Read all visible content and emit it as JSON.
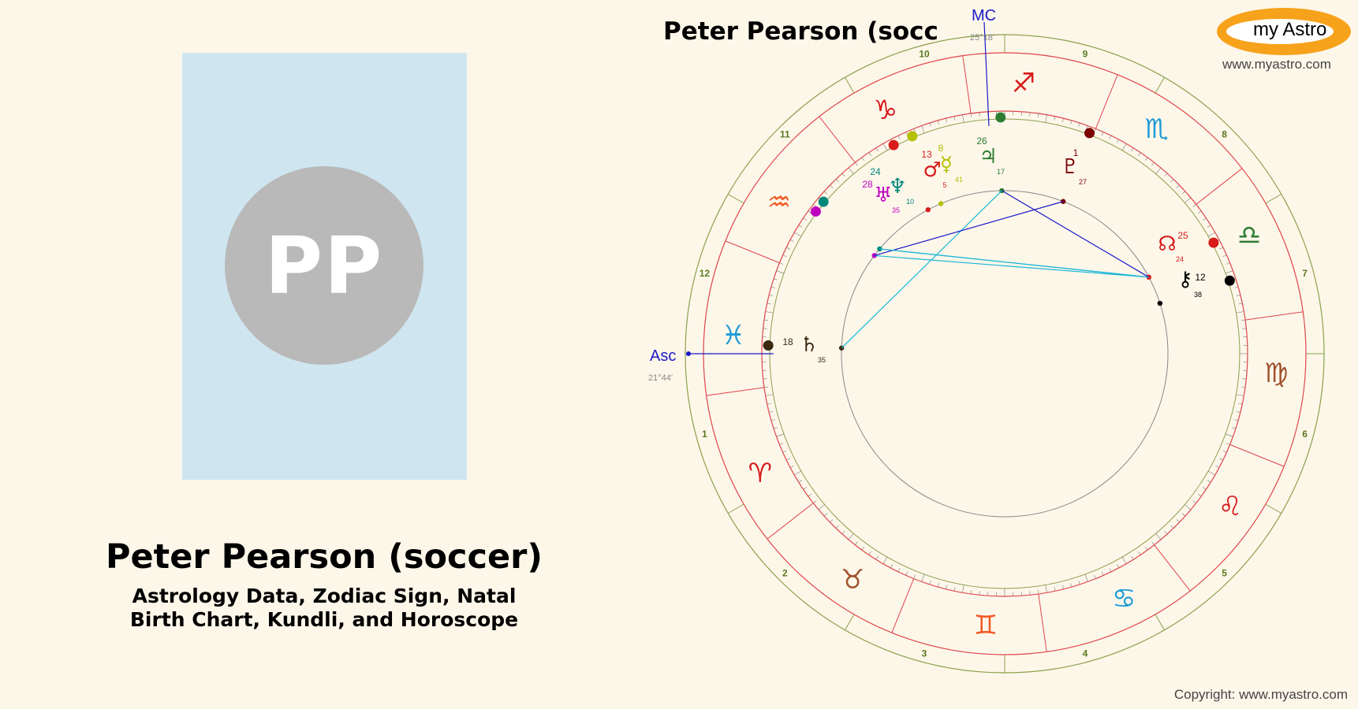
{
  "profile": {
    "initials": "PP",
    "name": "Peter Pearson (soccer)",
    "subtitle_line1": "Astrology Data, Zodiac Sign, Natal",
    "subtitle_line2": "Birth Chart, Kundli, and Horoscope"
  },
  "chart": {
    "title": "Peter Pearson (socc",
    "mc_label": "MC",
    "mc_degree": "25°18'",
    "asc_label": "Asc",
    "asc_degree": "21°44'"
  },
  "brand": {
    "logo_text": "my Astro",
    "site": "www.myastro.com",
    "copyright": "Copyright: www.myastro.com"
  },
  "houses": [
    "1",
    "2",
    "3",
    "4",
    "5",
    "6",
    "7",
    "8",
    "9",
    "10",
    "11",
    "12"
  ],
  "signs": [
    {
      "glyph": "♓",
      "color": "#1e9bd7"
    },
    {
      "glyph": "♒",
      "color": "#f15a24"
    },
    {
      "glyph": "♑",
      "color": "#d81b1b"
    },
    {
      "glyph": "♐",
      "color": "#d81b1b"
    },
    {
      "glyph": "♏",
      "color": "#1e9bd7"
    },
    {
      "glyph": "♎",
      "color": "#2e7d32"
    },
    {
      "glyph": "♍",
      "color": "#a0522d"
    },
    {
      "glyph": "♌",
      "color": "#d81b1b"
    },
    {
      "glyph": "♋",
      "color": "#1e9bd7"
    },
    {
      "glyph": "♊",
      "color": "#f15a24"
    },
    {
      "glyph": "♉",
      "color": "#a0522d"
    },
    {
      "glyph": "♈",
      "color": "#d81b1b"
    }
  ],
  "planets": [
    {
      "glyph": "♄",
      "deg": "18",
      "min": "35",
      "color": "#3b2a10"
    },
    {
      "glyph": "♅",
      "deg": "28",
      "min": "35",
      "color": "#c000c0"
    },
    {
      "glyph": "♆",
      "deg": "24",
      "min": "10",
      "color": "#00897b"
    },
    {
      "glyph": "♂",
      "deg": "13",
      "min": "5",
      "color": "#d81b1b"
    },
    {
      "glyph": "☿",
      "deg": "8",
      "min": "41",
      "color": "#b5c000"
    },
    {
      "glyph": "♃",
      "deg": "26",
      "min": "17",
      "color": "#2e7d32"
    },
    {
      "glyph": "♇",
      "deg": "1",
      "min": "27",
      "color": "#7b0000"
    },
    {
      "glyph": "☊",
      "deg": "25",
      "min": "24",
      "color": "#d81b1b"
    },
    {
      "glyph": "⚷",
      "deg": "12",
      "min": "38",
      "color": "#000000"
    }
  ]
}
